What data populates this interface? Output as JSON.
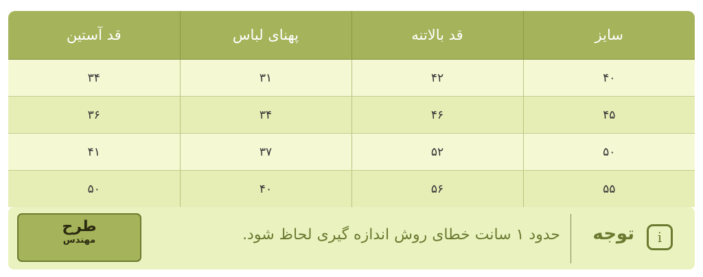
{
  "table": {
    "headers": [
      "سایز",
      "قد بالاتنه",
      "پهنای لباس",
      "قد آستین"
    ],
    "rows": [
      [
        "۴۰",
        "۴۲",
        "۳۱",
        "۳۴"
      ],
      [
        "۴۵",
        "۴۶",
        "۳۴",
        "۳۶"
      ],
      [
        "۵۰",
        "۵۲",
        "۳۷",
        "۴۱"
      ],
      [
        "۵۵",
        "۵۶",
        "۴۰",
        "۵۰"
      ]
    ]
  },
  "notice": {
    "icon": "info-icon",
    "title": "توجه",
    "text": "حدود ۱ سانت خطای روش اندازه گیری لحاظ شود."
  },
  "logo": {
    "line1": "طرح",
    "line2": "مهندس"
  },
  "colors": {
    "header": "#a5b35a",
    "row_odd": "#f4f9d4",
    "row_even": "#e6eeb6",
    "notice_bg": "#eaf3c0",
    "accent_dark": "#6b7a30"
  }
}
